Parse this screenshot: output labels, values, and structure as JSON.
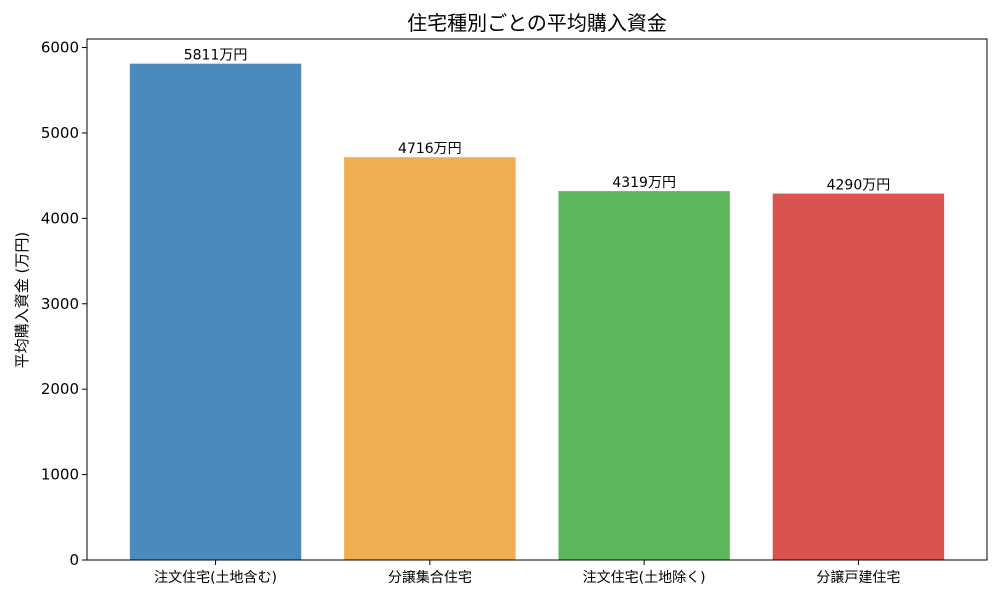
{
  "chart_data": {
    "type": "bar",
    "title": "住宅種別ごとの平均購入資金",
    "xlabel": "",
    "ylabel": "平均購入資金 (万円)",
    "categories": [
      "注文住宅(土地含む)",
      "分譲集合住宅",
      "注文住宅(土地除く)",
      "分譲戸建住宅"
    ],
    "values": [
      5811,
      4716,
      4319,
      4290
    ],
    "value_labels": [
      "5811万円",
      "4716万円",
      "4319万円",
      "4290万円"
    ],
    "colors": [
      "#4a8bbf",
      "#f0ae50",
      "#5cb85c",
      "#d9534f"
    ],
    "ylim": [
      0,
      6100
    ],
    "yticks": [
      0,
      1000,
      2000,
      3000,
      4000,
      5000,
      6000
    ],
    "ytick_labels": [
      "0",
      "1000",
      "2000",
      "3000",
      "4000",
      "5000",
      "6000"
    ],
    "grid": false,
    "legend": "none"
  }
}
